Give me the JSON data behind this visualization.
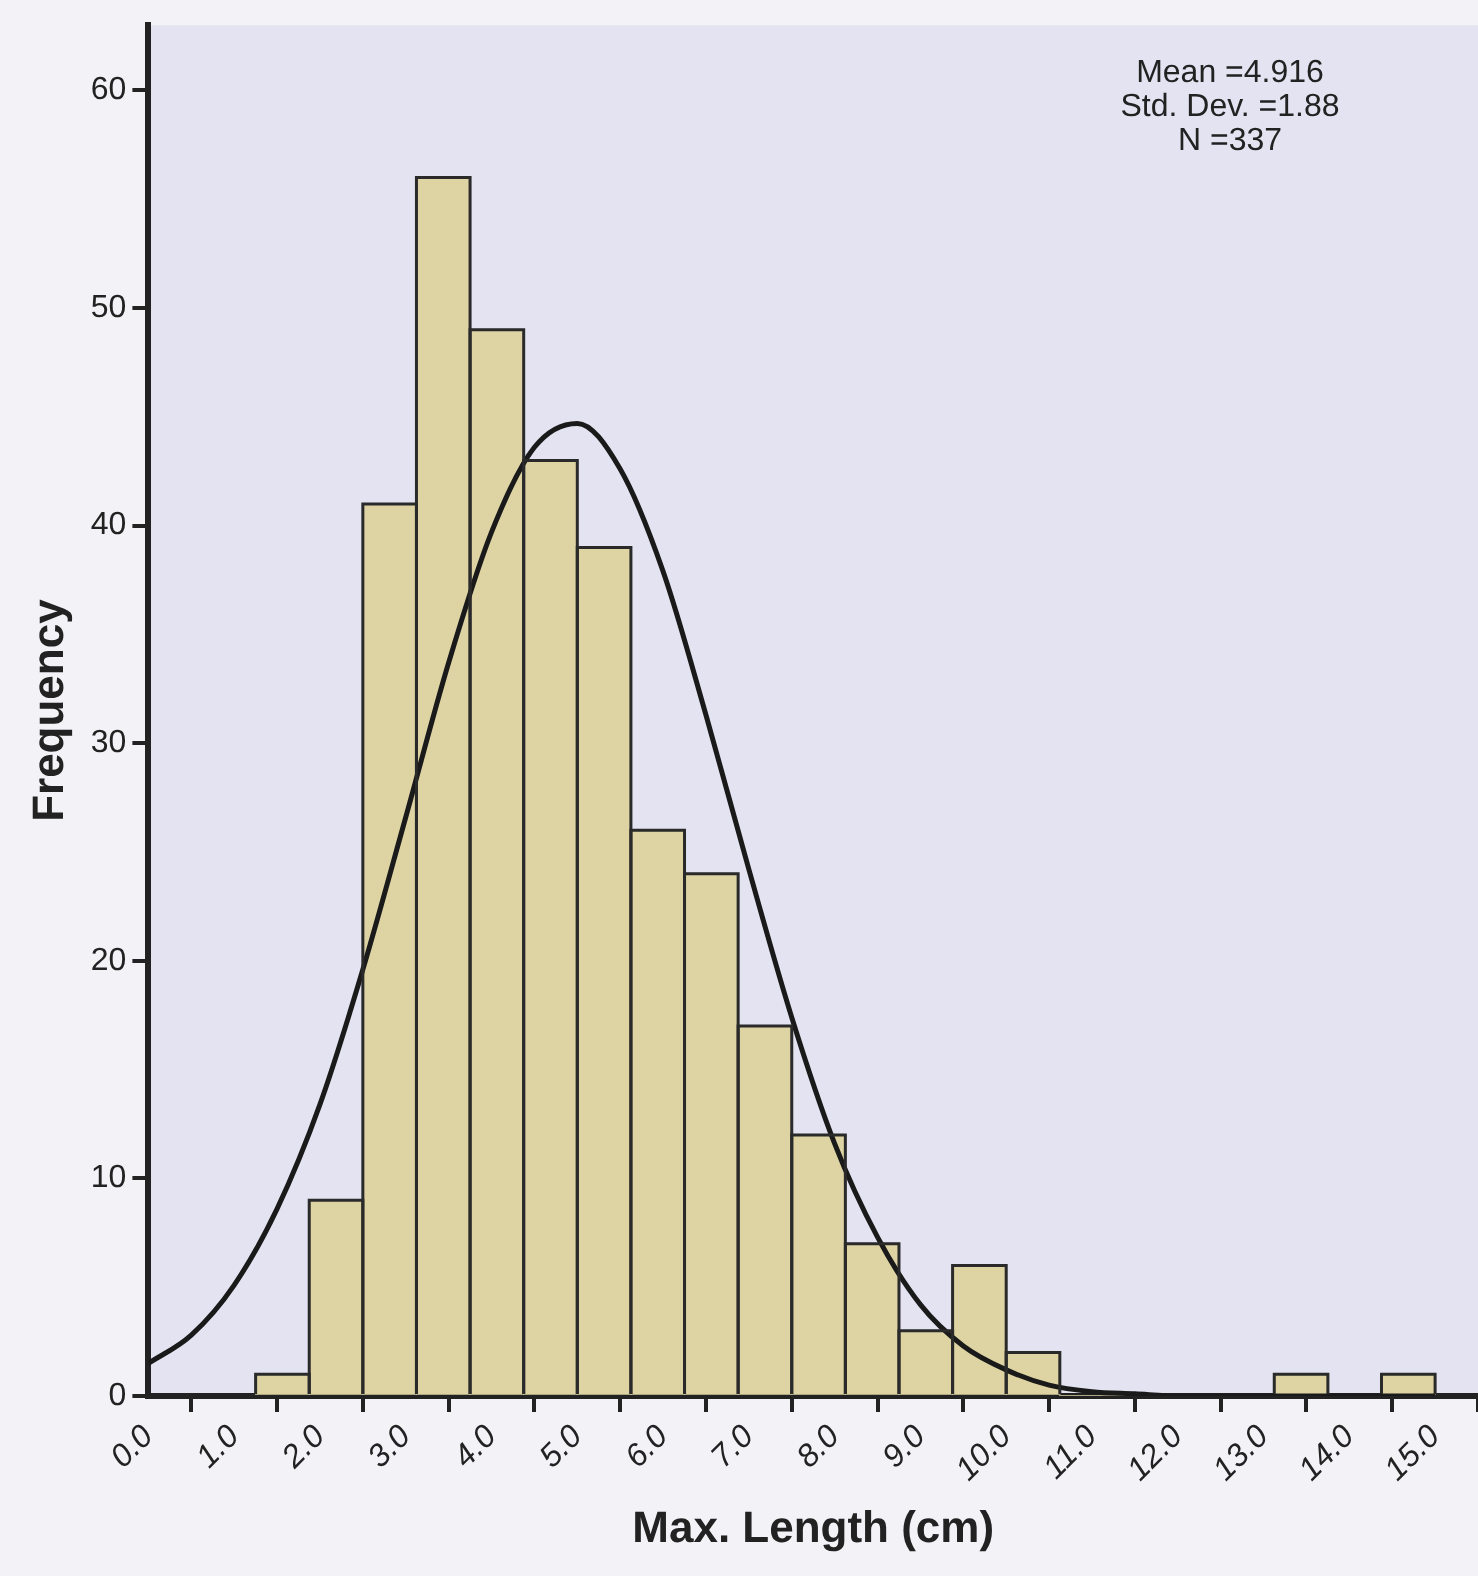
{
  "chart_data": {
    "type": "histogram",
    "xlabel": "Max. Length (cm)",
    "ylabel": "Frequency",
    "bins": [
      1.25,
      1.875,
      2.5,
      3.125,
      3.75,
      4.375,
      5.0,
      5.625,
      6.25,
      6.875,
      7.5,
      8.125,
      8.75,
      9.375,
      10.0,
      10.625,
      11.25,
      11.875,
      12.5,
      13.125,
      13.75,
      14.375,
      15.0
    ],
    "values": [
      1,
      9,
      41,
      56,
      49,
      43,
      39,
      26,
      24,
      17,
      12,
      7,
      3,
      6,
      2,
      0,
      0,
      0,
      0,
      1,
      0,
      1
    ],
    "color": "#ddd3a3",
    "series": [
      {
        "type": "line",
        "color": "#1a1a1a",
        "x": [
          0,
          0.5,
          1,
          1.5,
          2,
          2.5,
          3,
          3.5,
          4,
          4.5,
          5,
          5.5,
          6,
          6.5,
          7,
          7.5,
          8,
          8.5,
          9,
          9.5,
          10,
          10.5,
          11,
          11.5,
          12,
          13,
          14,
          15
        ],
        "values": [
          1.5,
          2.8,
          5.1,
          8.6,
          13.4,
          19.6,
          26.6,
          33.7,
          39.7,
          43.6,
          44.7,
          42.6,
          37.9,
          31.3,
          24.2,
          17.4,
          11.6,
          7.3,
          4.2,
          2.3,
          1.2,
          0.5,
          0.2,
          0.1,
          0,
          0,
          0,
          0
        ]
      }
    ],
    "xlim": [
      0,
      15.5
    ],
    "ylim": [
      0,
      63
    ],
    "xticks": [
      {
        "value": 0,
        "label": "0.0"
      },
      {
        "value": 1,
        "label": "1.0"
      },
      {
        "value": 2,
        "label": "2.0"
      },
      {
        "value": 3,
        "label": "3.0"
      },
      {
        "value": 4,
        "label": "4.0"
      },
      {
        "value": 5,
        "label": "5.0"
      },
      {
        "value": 6,
        "label": "6.0"
      },
      {
        "value": 7,
        "label": "7.0"
      },
      {
        "value": 8,
        "label": "8.0"
      },
      {
        "value": 9,
        "label": "9.0"
      },
      {
        "value": 10,
        "label": "10.0"
      },
      {
        "value": 11,
        "label": "11.0"
      },
      {
        "value": 12,
        "label": "12.0"
      },
      {
        "value": 13,
        "label": "13.0"
      },
      {
        "value": 14,
        "label": "14.0"
      },
      {
        "value": 15,
        "label": "15.0"
      }
    ],
    "yticks": [
      0,
      10,
      20,
      30,
      40,
      50,
      60
    ],
    "annotations": [
      "Mean =4.916",
      "Std. Dev. =1.88",
      "N =337"
    ],
    "grid": false,
    "legend": false,
    "marker": "none"
  }
}
